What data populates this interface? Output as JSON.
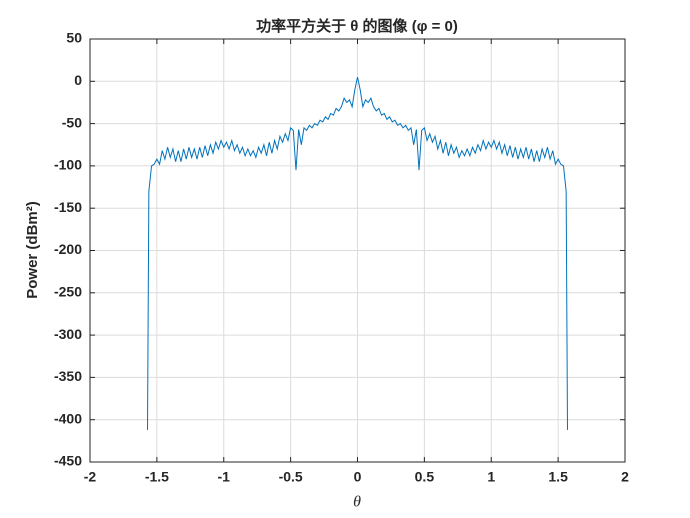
{
  "chart_data": {
    "type": "line",
    "title": "功率平方关于 θ 的图像 (φ = 0)",
    "xlabel": "θ",
    "ylabel": "Power (dBm²)",
    "xlim": [
      -2,
      2
    ],
    "ylim": [
      -450,
      50
    ],
    "xticks": [
      -2,
      -1.5,
      -1,
      -0.5,
      0,
      0.5,
      1,
      1.5,
      2
    ],
    "yticks": [
      50,
      0,
      -50,
      -100,
      -150,
      -200,
      -250,
      -300,
      -350,
      -400,
      -450
    ],
    "grid": true,
    "x": [
      -1.57,
      -1.56,
      -1.54,
      -1.52,
      -1.5,
      -1.48,
      -1.46,
      -1.44,
      -1.42,
      -1.4,
      -1.38,
      -1.36,
      -1.34,
      -1.32,
      -1.3,
      -1.28,
      -1.26,
      -1.24,
      -1.22,
      -1.2,
      -1.18,
      -1.16,
      -1.14,
      -1.12,
      -1.1,
      -1.08,
      -1.06,
      -1.04,
      -1.02,
      -1.0,
      -0.98,
      -0.96,
      -0.94,
      -0.92,
      -0.9,
      -0.88,
      -0.86,
      -0.84,
      -0.82,
      -0.8,
      -0.78,
      -0.76,
      -0.74,
      -0.72,
      -0.7,
      -0.68,
      -0.66,
      -0.64,
      -0.62,
      -0.6,
      -0.58,
      -0.56,
      -0.54,
      -0.52,
      -0.5,
      -0.48,
      -0.46,
      -0.44,
      -0.42,
      -0.4,
      -0.38,
      -0.36,
      -0.34,
      -0.32,
      -0.3,
      -0.28,
      -0.26,
      -0.24,
      -0.22,
      -0.2,
      -0.18,
      -0.16,
      -0.14,
      -0.12,
      -0.1,
      -0.08,
      -0.06,
      -0.04,
      -0.02,
      0,
      0.02,
      0.04,
      0.06,
      0.08,
      0.1,
      0.12,
      0.14,
      0.16,
      0.18,
      0.2,
      0.22,
      0.24,
      0.26,
      0.28,
      0.3,
      0.32,
      0.34,
      0.36,
      0.38,
      0.4,
      0.42,
      0.44,
      0.46,
      0.48,
      0.5,
      0.52,
      0.54,
      0.56,
      0.58,
      0.6,
      0.62,
      0.64,
      0.66,
      0.68,
      0.7,
      0.72,
      0.74,
      0.76,
      0.78,
      0.8,
      0.82,
      0.84,
      0.86,
      0.88,
      0.9,
      0.92,
      0.94,
      0.96,
      0.98,
      1.0,
      1.02,
      1.04,
      1.06,
      1.08,
      1.1,
      1.12,
      1.14,
      1.16,
      1.18,
      1.2,
      1.22,
      1.24,
      1.26,
      1.28,
      1.3,
      1.32,
      1.34,
      1.36,
      1.38,
      1.4,
      1.42,
      1.44,
      1.46,
      1.48,
      1.5,
      1.52,
      1.54,
      1.56,
      1.57
    ],
    "series": [
      {
        "color": "#0072bd",
        "values": [
          -412,
          -130,
          -100,
          -98,
          -92,
          -98,
          -82,
          -92,
          -78,
          -90,
          -80,
          -95,
          -82,
          -95,
          -80,
          -92,
          -78,
          -90,
          -80,
          -92,
          -78,
          -90,
          -76,
          -88,
          -75,
          -85,
          -72,
          -80,
          -70,
          -78,
          -72,
          -80,
          -70,
          -82,
          -75,
          -85,
          -78,
          -88,
          -80,
          -88,
          -82,
          -90,
          -78,
          -85,
          -75,
          -88,
          -72,
          -85,
          -70,
          -80,
          -65,
          -72,
          -62,
          -70,
          -55,
          -58,
          -105,
          -57,
          -75,
          -55,
          -58,
          -52,
          -55,
          -50,
          -52,
          -46,
          -48,
          -42,
          -45,
          -38,
          -40,
          -32,
          -35,
          -30,
          -20,
          -25,
          -22,
          -30,
          -10,
          5,
          -10,
          -30,
          -22,
          -25,
          -20,
          -30,
          -35,
          -32,
          -40,
          -38,
          -45,
          -42,
          -48,
          -46,
          -52,
          -50,
          -55,
          -52,
          -58,
          -55,
          -75,
          -57,
          -105,
          -58,
          -55,
          -70,
          -62,
          -72,
          -65,
          -80,
          -70,
          -85,
          -72,
          -88,
          -75,
          -85,
          -78,
          -90,
          -82,
          -88,
          -80,
          -88,
          -78,
          -85,
          -75,
          -82,
          -70,
          -80,
          -72,
          -78,
          -70,
          -80,
          -72,
          -85,
          -75,
          -88,
          -76,
          -90,
          -78,
          -92,
          -80,
          -90,
          -78,
          -92,
          -80,
          -95,
          -82,
          -95,
          -80,
          -90,
          -78,
          -92,
          -82,
          -98,
          -92,
          -98,
          -100,
          -130,
          -412
        ]
      }
    ]
  }
}
